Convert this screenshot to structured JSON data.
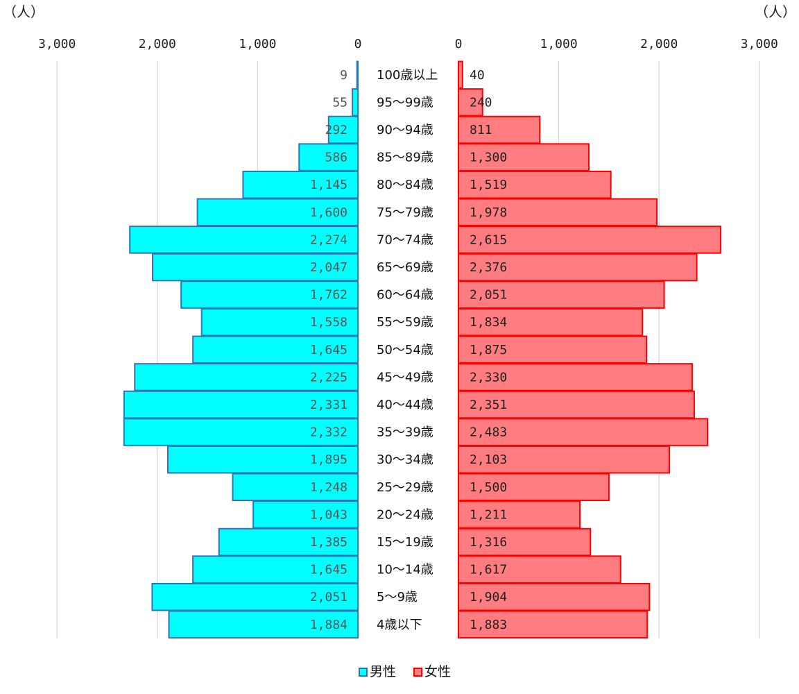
{
  "chart_data": {
    "type": "bar",
    "unit_left": "（人）",
    "unit_right": "（人）",
    "left_ticks": [
      "3,000",
      "2,000",
      "1,000",
      "0"
    ],
    "right_ticks": [
      "0",
      "1,000",
      "2,000",
      "3,000"
    ],
    "xlim": [
      0,
      3000
    ],
    "grid": true,
    "legend_position": "bottom",
    "categories": [
      "100歳以上",
      "95～99歳",
      "90～94歳",
      "85～89歳",
      "80～84歳",
      "75～79歳",
      "70～74歳",
      "65～69歳",
      "60～64歳",
      "55～59歳",
      "50～54歳",
      "45～49歳",
      "40～44歳",
      "35～39歳",
      "30～34歳",
      "25～29歳",
      "20～24歳",
      "15～19歳",
      "10～14歳",
      "5～9歳",
      "4歳以下"
    ],
    "series": [
      {
        "name": "男性",
        "color": "#00ffff",
        "edge": "#2e75b6",
        "values": [
          9,
          55,
          292,
          586,
          1145,
          1600,
          2274,
          2047,
          1762,
          1558,
          1645,
          2225,
          2331,
          2332,
          1895,
          1248,
          1043,
          1385,
          1645,
          2051,
          1884
        ],
        "labels": [
          "9",
          "55",
          "292",
          "586",
          "1,145",
          "1,600",
          "2,274",
          "2,047",
          "1,762",
          "1,558",
          "1,645",
          "2,225",
          "2,331",
          "2,332",
          "1,895",
          "1,248",
          "1,043",
          "1,385",
          "1,645",
          "2,051",
          "1,884"
        ]
      },
      {
        "name": "女性",
        "color": "#ff7c80",
        "edge": "#ff0000",
        "values": [
          40,
          240,
          811,
          1300,
          1519,
          1978,
          2615,
          2376,
          2051,
          1834,
          1875,
          2330,
          2351,
          2483,
          2103,
          1500,
          1211,
          1316,
          1617,
          1904,
          1883
        ],
        "labels": [
          "40",
          "240",
          "811",
          "1,300",
          "1,519",
          "1,978",
          "2,615",
          "2,376",
          "2,051",
          "1,834",
          "1,875",
          "2,330",
          "2,351",
          "2,483",
          "2,103",
          "1,500",
          "1,211",
          "1,316",
          "1,617",
          "1,904",
          "1,883"
        ]
      }
    ]
  }
}
